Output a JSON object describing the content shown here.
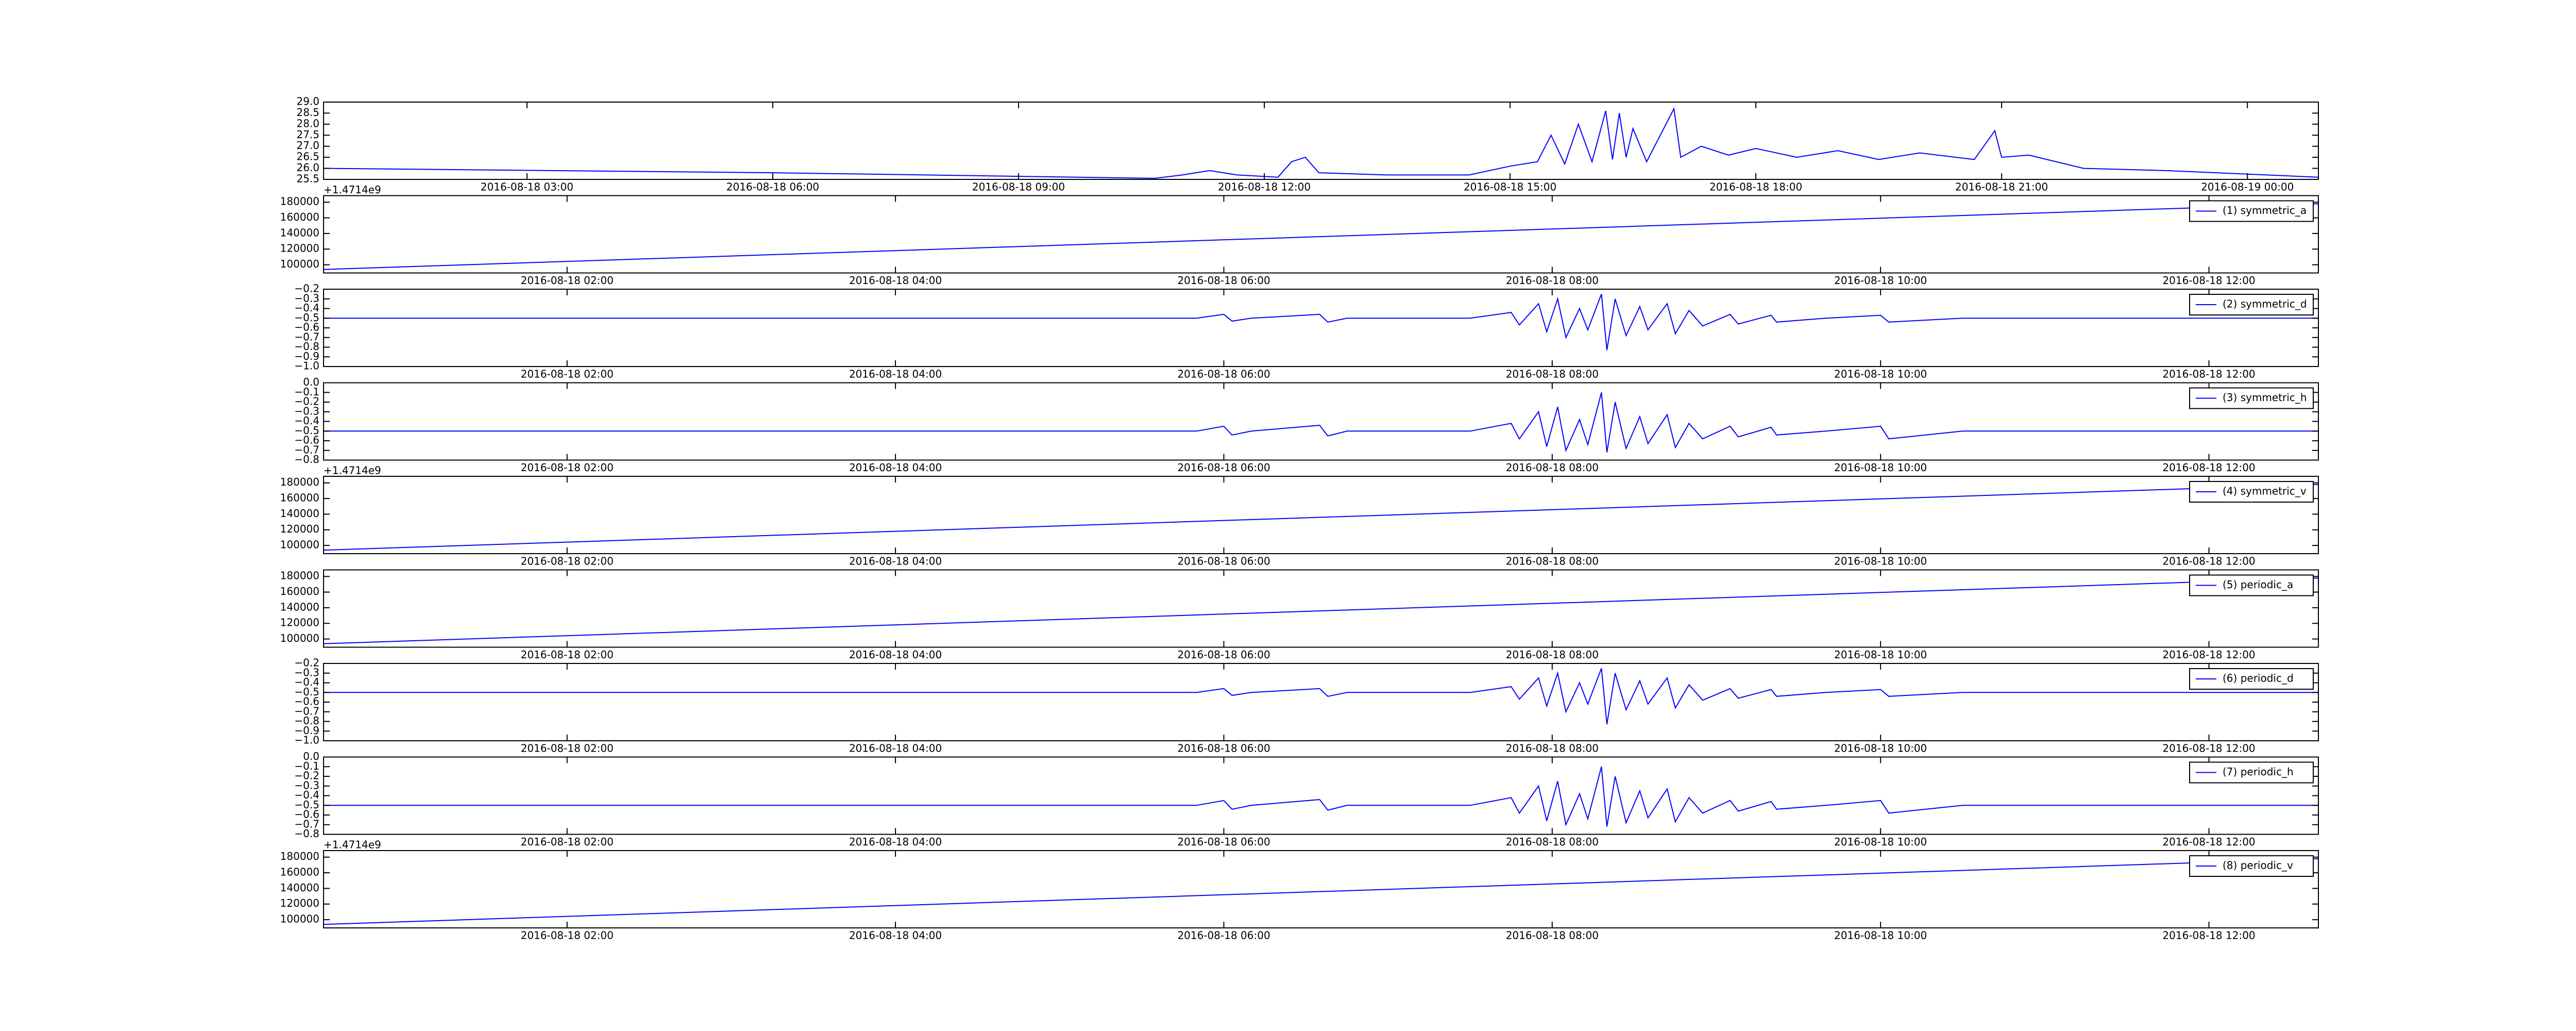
{
  "chart_data": [
    {
      "type": "line",
      "color": "#0000ff",
      "x": [
        "2016-08-18 00:31",
        "2016-08-18 06:00",
        "2016-08-18 10:40",
        "2016-08-18 11:00",
        "2016-08-18 11:20",
        "2016-08-18 11:40",
        "2016-08-18 12:10",
        "2016-08-18 12:20",
        "2016-08-18 12:30",
        "2016-08-18 12:40",
        "2016-08-18 13:30",
        "2016-08-18 14:30",
        "2016-08-18 15:00",
        "2016-08-18 15:20",
        "2016-08-18 15:30",
        "2016-08-18 15:40",
        "2016-08-18 15:50",
        "2016-08-18 16:00",
        "2016-08-18 16:10",
        "2016-08-18 16:15",
        "2016-08-18 16:20",
        "2016-08-18 16:25",
        "2016-08-18 16:30",
        "2016-08-18 16:40",
        "2016-08-18 17:00",
        "2016-08-18 17:05",
        "2016-08-18 17:20",
        "2016-08-18 17:40",
        "2016-08-18 18:00",
        "2016-08-18 18:30",
        "2016-08-18 19:00",
        "2016-08-18 19:30",
        "2016-08-18 20:00",
        "2016-08-18 20:40",
        "2016-08-18 20:55",
        "2016-08-18 21:00",
        "2016-08-18 21:20",
        "2016-08-18 22:00",
        "2016-08-18 23:00",
        "2016-08-19 00:52"
      ],
      "values": [
        26.0,
        25.8,
        25.55,
        25.7,
        25.9,
        25.7,
        25.6,
        26.3,
        26.5,
        25.8,
        25.7,
        25.7,
        26.1,
        26.3,
        27.5,
        26.2,
        28.0,
        26.3,
        28.6,
        26.4,
        28.5,
        26.5,
        27.8,
        26.3,
        28.7,
        26.5,
        27.0,
        26.6,
        26.9,
        26.5,
        26.8,
        26.4,
        26.7,
        26.4,
        27.7,
        26.5,
        26.6,
        26.0,
        25.9,
        25.6
      ],
      "xlim": [
        "2016-08-18 00:31",
        "2016-08-19 00:52"
      ],
      "ylim": [
        25.5,
        29.0
      ],
      "xticks": [
        "2016-08-18 03:00",
        "2016-08-18 06:00",
        "2016-08-18 09:00",
        "2016-08-18 12:00",
        "2016-08-18 15:00",
        "2016-08-18 18:00",
        "2016-08-18 21:00",
        "2016-08-19 00:00"
      ],
      "yticks": [
        {
          "value": 25.5,
          "label": "25.5"
        },
        {
          "value": 26.0,
          "label": "26.0"
        },
        {
          "value": 26.5,
          "label": "26.5"
        },
        {
          "value": 27.0,
          "label": "27.0"
        },
        {
          "value": 27.5,
          "label": "27.5"
        },
        {
          "value": 28.0,
          "label": "28.0"
        },
        {
          "value": 28.5,
          "label": "28.5"
        },
        {
          "value": 29.0,
          "label": "29.0"
        }
      ]
    },
    {
      "type": "line",
      "offset_text": "+1.4714e9",
      "legend": "upper right",
      "x": [
        "2016-08-18 00:31",
        "2016-08-18 12:40"
      ],
      "series": [
        {
          "name": "(1) symmetric_a",
          "color": "#0000ff",
          "values": [
            94000,
            178000
          ]
        }
      ],
      "xlim": [
        "2016-08-18 00:31",
        "2016-08-18 12:40"
      ],
      "ylim": [
        89500,
        188400
      ],
      "xticks": [
        "2016-08-18 02:00",
        "2016-08-18 04:00",
        "2016-08-18 06:00",
        "2016-08-18 08:00",
        "2016-08-18 10:00",
        "2016-08-18 12:00"
      ],
      "yticks": [
        100000,
        120000,
        140000,
        160000,
        180000
      ]
    },
    {
      "type": "line",
      "legend": "upper right",
      "x": [
        "2016-08-18 00:31",
        "2016-08-18 03:00",
        "2016-08-18 05:50",
        "2016-08-18 06:00",
        "2016-08-18 06:03",
        "2016-08-18 06:10",
        "2016-08-18 06:35",
        "2016-08-18 06:38",
        "2016-08-18 06:45",
        "2016-08-18 07:30",
        "2016-08-18 07:45",
        "2016-08-18 07:48",
        "2016-08-18 07:55",
        "2016-08-18 07:58",
        "2016-08-18 08:02",
        "2016-08-18 08:05",
        "2016-08-18 08:10",
        "2016-08-18 08:13",
        "2016-08-18 08:18",
        "2016-08-18 08:20",
        "2016-08-18 08:23",
        "2016-08-18 08:27",
        "2016-08-18 08:32",
        "2016-08-18 08:35",
        "2016-08-18 08:42",
        "2016-08-18 08:45",
        "2016-08-18 08:50",
        "2016-08-18 08:55",
        "2016-08-18 09:05",
        "2016-08-18 09:08",
        "2016-08-18 09:20",
        "2016-08-18 09:22",
        "2016-08-18 09:40",
        "2016-08-18 10:00",
        "2016-08-18 10:03",
        "2016-08-18 10:30",
        "2016-08-18 10:50",
        "2016-08-18 12:40"
      ],
      "series": [
        {
          "name": "(2) symmetric_d",
          "color": "#0000ff",
          "values": [
            -0.5,
            -0.5,
            -0.5,
            -0.46,
            -0.53,
            -0.5,
            -0.46,
            -0.54,
            -0.5,
            -0.5,
            -0.44,
            -0.57,
            -0.35,
            -0.64,
            -0.3,
            -0.7,
            -0.4,
            -0.62,
            -0.25,
            -0.83,
            -0.3,
            -0.68,
            -0.38,
            -0.62,
            -0.35,
            -0.66,
            -0.42,
            -0.58,
            -0.46,
            -0.56,
            -0.47,
            -0.54,
            -0.5,
            -0.47,
            -0.54,
            -0.5,
            -0.5,
            -0.5
          ]
        }
      ],
      "xlim": [
        "2016-08-18 00:31",
        "2016-08-18 12:40"
      ],
      "ylim": [
        -1.0,
        -0.2
      ],
      "xticks": [
        "2016-08-18 02:00",
        "2016-08-18 04:00",
        "2016-08-18 06:00",
        "2016-08-18 08:00",
        "2016-08-18 10:00",
        "2016-08-18 12:00"
      ],
      "yticks": [
        {
          "value": -1.0,
          "label": "−1.0"
        },
        {
          "value": -0.9,
          "label": "−0.9"
        },
        {
          "value": -0.8,
          "label": "−0.8"
        },
        {
          "value": -0.7,
          "label": "−0.7"
        },
        {
          "value": -0.6,
          "label": "−0.6"
        },
        {
          "value": -0.5,
          "label": "−0.5"
        },
        {
          "value": -0.4,
          "label": "−0.4"
        },
        {
          "value": -0.3,
          "label": "−0.3"
        },
        {
          "value": -0.2,
          "label": "−0.2"
        }
      ]
    },
    {
      "type": "line",
      "legend": "upper right",
      "x": [
        "2016-08-18 00:31",
        "2016-08-18 03:00",
        "2016-08-18 05:50",
        "2016-08-18 06:00",
        "2016-08-18 06:03",
        "2016-08-18 06:10",
        "2016-08-18 06:35",
        "2016-08-18 06:38",
        "2016-08-18 06:45",
        "2016-08-18 07:30",
        "2016-08-18 07:45",
        "2016-08-18 07:48",
        "2016-08-18 07:55",
        "2016-08-18 07:58",
        "2016-08-18 08:02",
        "2016-08-18 08:05",
        "2016-08-18 08:10",
        "2016-08-18 08:13",
        "2016-08-18 08:18",
        "2016-08-18 08:20",
        "2016-08-18 08:23",
        "2016-08-18 08:27",
        "2016-08-18 08:32",
        "2016-08-18 08:35",
        "2016-08-18 08:42",
        "2016-08-18 08:45",
        "2016-08-18 08:50",
        "2016-08-18 08:55",
        "2016-08-18 09:05",
        "2016-08-18 09:08",
        "2016-08-18 09:20",
        "2016-08-18 09:22",
        "2016-08-18 09:40",
        "2016-08-18 10:00",
        "2016-08-18 10:03",
        "2016-08-18 10:30",
        "2016-08-18 10:50",
        "2016-08-18 12:40"
      ],
      "series": [
        {
          "name": "(3) symmetric_h",
          "color": "#0000ff",
          "values": [
            -0.5,
            -0.5,
            -0.5,
            -0.45,
            -0.54,
            -0.5,
            -0.44,
            -0.55,
            -0.5,
            -0.5,
            -0.42,
            -0.58,
            -0.3,
            -0.66,
            -0.25,
            -0.7,
            -0.38,
            -0.64,
            -0.1,
            -0.72,
            -0.2,
            -0.68,
            -0.35,
            -0.63,
            -0.33,
            -0.67,
            -0.42,
            -0.58,
            -0.45,
            -0.56,
            -0.46,
            -0.54,
            -0.5,
            -0.45,
            -0.58,
            -0.5,
            -0.5,
            -0.5
          ]
        }
      ],
      "xlim": [
        "2016-08-18 00:31",
        "2016-08-18 12:40"
      ],
      "ylim": [
        -0.8,
        0.0
      ],
      "xticks": [
        "2016-08-18 02:00",
        "2016-08-18 04:00",
        "2016-08-18 06:00",
        "2016-08-18 08:00",
        "2016-08-18 10:00",
        "2016-08-18 12:00"
      ],
      "yticks": [
        {
          "value": -0.8,
          "label": "−0.8"
        },
        {
          "value": -0.7,
          "label": "−0.7"
        },
        {
          "value": -0.6,
          "label": "−0.6"
        },
        {
          "value": -0.5,
          "label": "−0.5"
        },
        {
          "value": -0.4,
          "label": "−0.4"
        },
        {
          "value": -0.3,
          "label": "−0.3"
        },
        {
          "value": -0.2,
          "label": "−0.2"
        },
        {
          "value": -0.1,
          "label": "−0.1"
        },
        {
          "value": 0.0,
          "label": "0.0"
        }
      ]
    },
    {
      "type": "line",
      "offset_text": "+1.4714e9",
      "legend": "upper right",
      "x": [
        "2016-08-18 00:31",
        "2016-08-18 12:40"
      ],
      "series": [
        {
          "name": "(4) symmetric_v",
          "color": "#0000ff",
          "values": [
            94000,
            178000
          ]
        }
      ],
      "xlim": [
        "2016-08-18 00:31",
        "2016-08-18 12:40"
      ],
      "ylim": [
        89500,
        188400
      ],
      "xticks": [
        "2016-08-18 02:00",
        "2016-08-18 04:00",
        "2016-08-18 06:00",
        "2016-08-18 08:00",
        "2016-08-18 10:00",
        "2016-08-18 12:00"
      ],
      "yticks": [
        100000,
        120000,
        140000,
        160000,
        180000
      ]
    },
    {
      "type": "line",
      "legend": "upper right",
      "x": [
        "2016-08-18 00:31",
        "2016-08-18 12:40"
      ],
      "series": [
        {
          "name": "(5) periodic_a",
          "color": "#0000ff",
          "values": [
            94000,
            178000
          ]
        }
      ],
      "xlim": [
        "2016-08-18 00:31",
        "2016-08-18 12:40"
      ],
      "ylim": [
        89500,
        188400
      ],
      "xticks": [
        "2016-08-18 02:00",
        "2016-08-18 04:00",
        "2016-08-18 06:00",
        "2016-08-18 08:00",
        "2016-08-18 10:00",
        "2016-08-18 12:00"
      ],
      "yticks": [
        100000,
        120000,
        140000,
        160000,
        180000
      ]
    },
    {
      "type": "line",
      "legend": "upper right",
      "x": [
        "2016-08-18 00:31",
        "2016-08-18 03:00",
        "2016-08-18 05:50",
        "2016-08-18 06:00",
        "2016-08-18 06:03",
        "2016-08-18 06:10",
        "2016-08-18 06:35",
        "2016-08-18 06:38",
        "2016-08-18 06:45",
        "2016-08-18 07:30",
        "2016-08-18 07:45",
        "2016-08-18 07:48",
        "2016-08-18 07:55",
        "2016-08-18 07:58",
        "2016-08-18 08:02",
        "2016-08-18 08:05",
        "2016-08-18 08:10",
        "2016-08-18 08:13",
        "2016-08-18 08:18",
        "2016-08-18 08:20",
        "2016-08-18 08:23",
        "2016-08-18 08:27",
        "2016-08-18 08:32",
        "2016-08-18 08:35",
        "2016-08-18 08:42",
        "2016-08-18 08:45",
        "2016-08-18 08:50",
        "2016-08-18 08:55",
        "2016-08-18 09:05",
        "2016-08-18 09:08",
        "2016-08-18 09:20",
        "2016-08-18 09:22",
        "2016-08-18 09:40",
        "2016-08-18 10:00",
        "2016-08-18 10:03",
        "2016-08-18 10:30",
        "2016-08-18 10:50",
        "2016-08-18 12:40"
      ],
      "series": [
        {
          "name": "(6) periodic_d",
          "color": "#0000ff",
          "values": [
            -0.5,
            -0.5,
            -0.5,
            -0.46,
            -0.53,
            -0.5,
            -0.46,
            -0.54,
            -0.5,
            -0.5,
            -0.44,
            -0.57,
            -0.35,
            -0.64,
            -0.3,
            -0.7,
            -0.4,
            -0.62,
            -0.25,
            -0.83,
            -0.3,
            -0.68,
            -0.38,
            -0.62,
            -0.35,
            -0.66,
            -0.42,
            -0.58,
            -0.46,
            -0.56,
            -0.47,
            -0.54,
            -0.5,
            -0.47,
            -0.54,
            -0.5,
            -0.5,
            -0.5
          ]
        }
      ],
      "xlim": [
        "2016-08-18 00:31",
        "2016-08-18 12:40"
      ],
      "ylim": [
        -1.0,
        -0.2
      ],
      "xticks": [
        "2016-08-18 02:00",
        "2016-08-18 04:00",
        "2016-08-18 06:00",
        "2016-08-18 08:00",
        "2016-08-18 10:00",
        "2016-08-18 12:00"
      ],
      "yticks": [
        {
          "value": -1.0,
          "label": "−1.0"
        },
        {
          "value": -0.9,
          "label": "−0.9"
        },
        {
          "value": -0.8,
          "label": "−0.8"
        },
        {
          "value": -0.7,
          "label": "−0.7"
        },
        {
          "value": -0.6,
          "label": "−0.6"
        },
        {
          "value": -0.5,
          "label": "−0.5"
        },
        {
          "value": -0.4,
          "label": "−0.4"
        },
        {
          "value": -0.3,
          "label": "−0.3"
        },
        {
          "value": -0.2,
          "label": "−0.2"
        }
      ]
    },
    {
      "type": "line",
      "legend": "upper right",
      "x": [
        "2016-08-18 00:31",
        "2016-08-18 03:00",
        "2016-08-18 05:50",
        "2016-08-18 06:00",
        "2016-08-18 06:03",
        "2016-08-18 06:10",
        "2016-08-18 06:35",
        "2016-08-18 06:38",
        "2016-08-18 06:45",
        "2016-08-18 07:30",
        "2016-08-18 07:45",
        "2016-08-18 07:48",
        "2016-08-18 07:55",
        "2016-08-18 07:58",
        "2016-08-18 08:02",
        "2016-08-18 08:05",
        "2016-08-18 08:10",
        "2016-08-18 08:13",
        "2016-08-18 08:18",
        "2016-08-18 08:20",
        "2016-08-18 08:23",
        "2016-08-18 08:27",
        "2016-08-18 08:32",
        "2016-08-18 08:35",
        "2016-08-18 08:42",
        "2016-08-18 08:45",
        "2016-08-18 08:50",
        "2016-08-18 08:55",
        "2016-08-18 09:05",
        "2016-08-18 09:08",
        "2016-08-18 09:20",
        "2016-08-18 09:22",
        "2016-08-18 09:40",
        "2016-08-18 10:00",
        "2016-08-18 10:03",
        "2016-08-18 10:30",
        "2016-08-18 10:50",
        "2016-08-18 12:40"
      ],
      "series": [
        {
          "name": "(7) periodic_h",
          "color": "#0000ff",
          "values": [
            -0.5,
            -0.5,
            -0.5,
            -0.45,
            -0.54,
            -0.5,
            -0.44,
            -0.55,
            -0.5,
            -0.5,
            -0.42,
            -0.58,
            -0.3,
            -0.66,
            -0.25,
            -0.7,
            -0.38,
            -0.64,
            -0.1,
            -0.72,
            -0.2,
            -0.68,
            -0.35,
            -0.63,
            -0.33,
            -0.67,
            -0.42,
            -0.58,
            -0.45,
            -0.56,
            -0.46,
            -0.54,
            -0.5,
            -0.45,
            -0.58,
            -0.5,
            -0.5,
            -0.5
          ]
        }
      ],
      "xlim": [
        "2016-08-18 00:31",
        "2016-08-18 12:40"
      ],
      "ylim": [
        -0.8,
        0.0
      ],
      "xticks": [
        "2016-08-18 02:00",
        "2016-08-18 04:00",
        "2016-08-18 06:00",
        "2016-08-18 08:00",
        "2016-08-18 10:00",
        "2016-08-18 12:00"
      ],
      "yticks": [
        {
          "value": -0.8,
          "label": "−0.8"
        },
        {
          "value": -0.7,
          "label": "−0.7"
        },
        {
          "value": -0.6,
          "label": "−0.6"
        },
        {
          "value": -0.5,
          "label": "−0.5"
        },
        {
          "value": -0.4,
          "label": "−0.4"
        },
        {
          "value": -0.3,
          "label": "−0.3"
        },
        {
          "value": -0.2,
          "label": "−0.2"
        },
        {
          "value": -0.1,
          "label": "−0.1"
        },
        {
          "value": 0.0,
          "label": "0.0"
        }
      ]
    },
    {
      "type": "line",
      "offset_text": "+1.4714e9",
      "legend": "upper right",
      "x": [
        "2016-08-18 00:31",
        "2016-08-18 12:40"
      ],
      "series": [
        {
          "name": "(8) periodic_v",
          "color": "#0000ff",
          "values": [
            94000,
            178000
          ]
        }
      ],
      "xlim": [
        "2016-08-18 00:31",
        "2016-08-18 12:40"
      ],
      "ylim": [
        89500,
        188400
      ],
      "xticks": [
        "2016-08-18 02:00",
        "2016-08-18 04:00",
        "2016-08-18 06:00",
        "2016-08-18 08:00",
        "2016-08-18 10:00",
        "2016-08-18 12:00"
      ],
      "yticks": [
        100000,
        120000,
        140000,
        160000,
        180000
      ]
    }
  ]
}
